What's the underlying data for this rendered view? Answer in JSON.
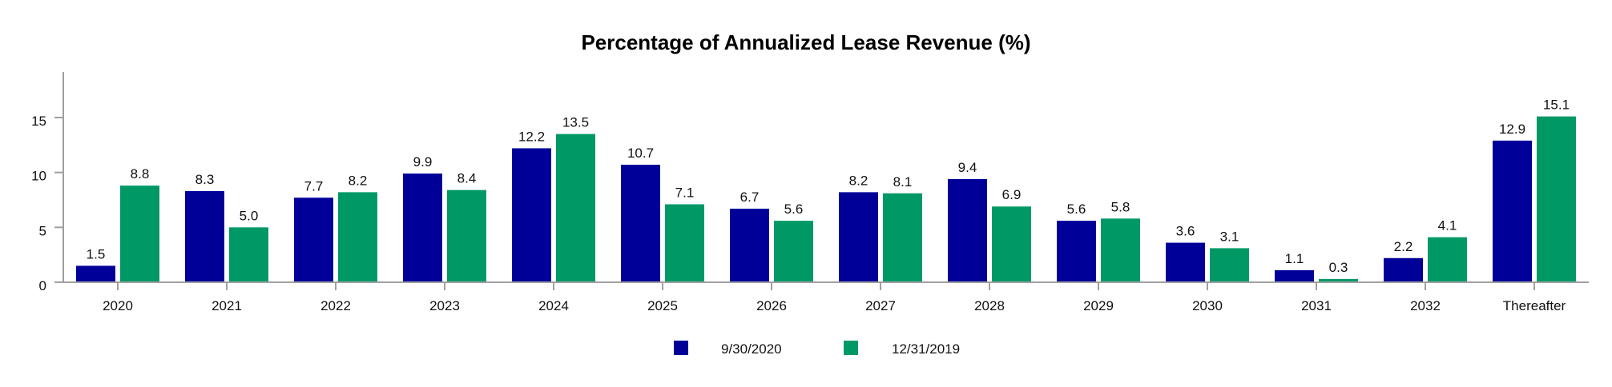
{
  "chart_data": {
    "type": "bar",
    "title": "Percentage of Annualized Lease Revenue (%)",
    "xlabel": "",
    "ylabel": "",
    "ylim": [
      0,
      19
    ],
    "yticks": [
      0,
      5,
      10,
      15
    ],
    "grid": false,
    "legend_position": "bottom-center",
    "categories": [
      "2020",
      "2021",
      "2022",
      "2023",
      "2024",
      "2025",
      "2026",
      "2027",
      "2028",
      "2029",
      "2030",
      "2031",
      "2032",
      "Thereafter"
    ],
    "series": [
      {
        "name": "9/30/2020",
        "color": "#000099",
        "values": [
          1.5,
          8.3,
          7.7,
          9.9,
          12.2,
          10.7,
          6.7,
          8.2,
          9.4,
          5.6,
          3.6,
          1.1,
          2.2,
          12.9
        ],
        "labels": [
          "1.5",
          "8.3",
          "7.7",
          "9.9",
          "12.2",
          "10.7",
          "6.7",
          "8.2",
          "9.4",
          "5.6",
          "3.6",
          "1.1",
          "2.2",
          "12.9"
        ]
      },
      {
        "name": "12/31/2019",
        "color": "#009966",
        "values": [
          8.8,
          5.0,
          8.2,
          8.4,
          13.5,
          7.1,
          5.6,
          8.1,
          6.9,
          5.8,
          3.1,
          0.3,
          4.1,
          15.1
        ],
        "labels": [
          "8.8",
          "5.0",
          "8.2",
          "8.4",
          "13.5",
          "7.1",
          "5.6",
          "8.1",
          "6.9",
          "5.8",
          "3.1",
          "0.3",
          "4.1",
          "15.1"
        ]
      }
    ]
  }
}
